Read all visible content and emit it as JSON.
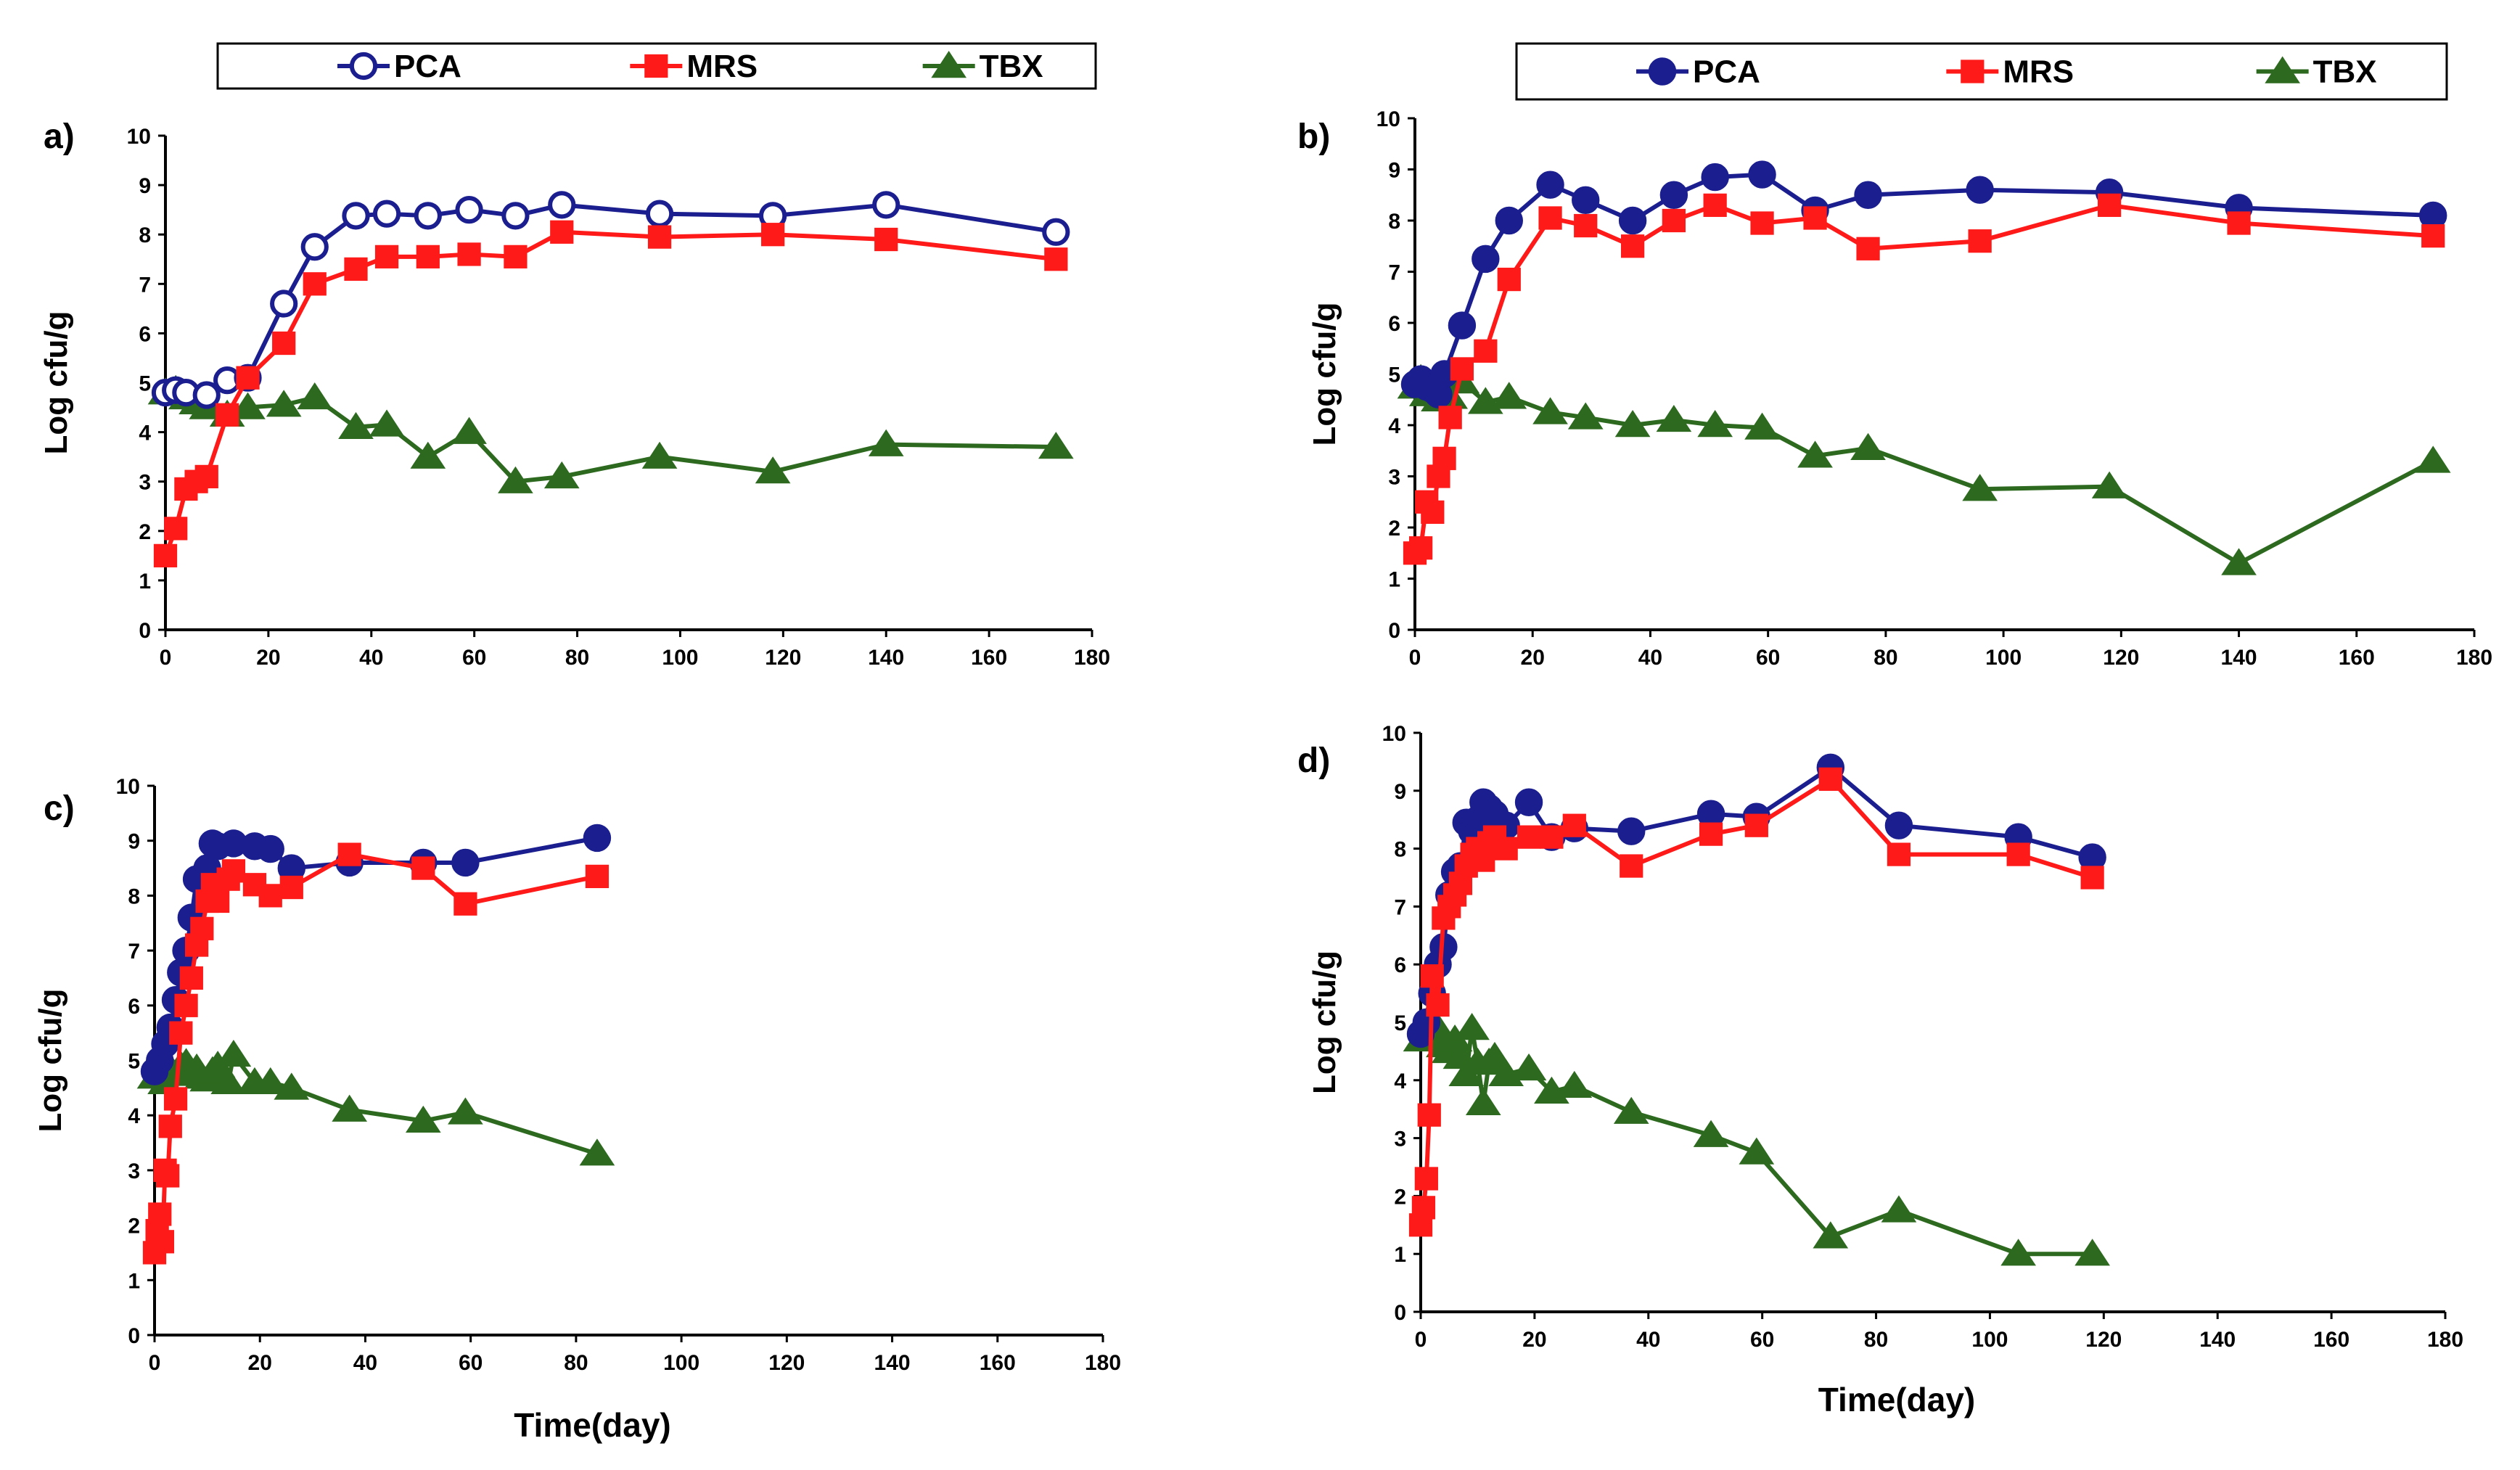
{
  "colors": {
    "PCA": "#1b1e8f",
    "MRS": "#ff1a1a",
    "TBX": "#2d6a1f"
  },
  "chart_data": [
    {
      "type": "line",
      "panel_label": "a)",
      "title": "",
      "xlabel": "",
      "ylabel": "Log cfu/g",
      "xlim": [
        0,
        180
      ],
      "ylim": [
        0,
        10
      ],
      "x_ticks": [
        "0",
        "20",
        "40",
        "60",
        "80",
        "100",
        "120",
        "140",
        "160",
        "180"
      ],
      "y_ticks": [
        "0",
        "1",
        "2",
        "3",
        "4",
        "5",
        "6",
        "7",
        "8",
        "9",
        "10"
      ],
      "legend": [
        "PCA",
        "MRS",
        "TBX"
      ],
      "series": [
        {
          "name": "PCA",
          "marker": "open-circle",
          "x": [
            0,
            2,
            4,
            8,
            12,
            16,
            23,
            29,
            37,
            43,
            51,
            59,
            68,
            77,
            96,
            118,
            140,
            173
          ],
          "y": [
            4.8,
            4.85,
            4.8,
            4.75,
            5.05,
            5.1,
            6.6,
            7.75,
            8.38,
            8.42,
            8.38,
            8.5,
            8.38,
            8.6,
            8.42,
            8.38,
            8.6,
            8.05
          ]
        },
        {
          "name": "MRS",
          "marker": "square",
          "x": [
            0,
            2,
            4,
            6,
            8,
            12,
            16,
            23,
            29,
            37,
            43,
            51,
            59,
            68,
            77,
            96,
            118,
            140,
            173
          ],
          "y": [
            1.5,
            2.05,
            2.85,
            3.0,
            3.1,
            4.35,
            5.1,
            5.8,
            7.0,
            7.3,
            7.55,
            7.55,
            7.6,
            7.55,
            8.05,
            7.95,
            8.0,
            7.9,
            7.5
          ]
        },
        {
          "name": "TBX",
          "marker": "triangle",
          "x": [
            0,
            2,
            4,
            6,
            8,
            12,
            16,
            23,
            29,
            37,
            43,
            51,
            59,
            68,
            77,
            96,
            118,
            140,
            173
          ],
          "y": [
            4.8,
            4.85,
            4.7,
            4.6,
            4.5,
            4.35,
            4.5,
            4.55,
            4.7,
            4.1,
            4.15,
            3.5,
            4.0,
            3.0,
            3.1,
            3.5,
            3.2,
            3.75,
            3.7
          ]
        }
      ]
    },
    {
      "type": "line",
      "panel_label": "b)",
      "title": "",
      "xlabel": "",
      "ylabel": "Log cfu/g",
      "xlim": [
        0,
        180
      ],
      "ylim": [
        0,
        10
      ],
      "x_ticks": [
        "0",
        "20",
        "40",
        "60",
        "80",
        "100",
        "120",
        "140",
        "160",
        "180"
      ],
      "y_ticks": [
        "0",
        "1",
        "2",
        "3",
        "4",
        "5",
        "6",
        "7",
        "8",
        "9",
        "10"
      ],
      "legend": [
        "PCA",
        "MRS",
        "TBX"
      ],
      "series": [
        {
          "name": "PCA",
          "marker": "filled-circle",
          "x": [
            0,
            1,
            2,
            3,
            4,
            5,
            8,
            12,
            16,
            23,
            29,
            37,
            44,
            51,
            59,
            68,
            77,
            96,
            118,
            140,
            173
          ],
          "y": [
            4.8,
            4.9,
            4.75,
            4.7,
            4.6,
            5.0,
            5.95,
            7.25,
            8.0,
            8.7,
            8.4,
            8.0,
            8.5,
            8.85,
            8.9,
            8.2,
            8.5,
            8.6,
            8.55,
            8.25,
            8.1
          ]
        },
        {
          "name": "MRS",
          "marker": "square",
          "x": [
            0,
            1,
            2,
            3,
            4,
            5,
            6,
            8,
            12,
            16,
            23,
            29,
            37,
            44,
            51,
            59,
            68,
            77,
            96,
            118,
            140,
            173
          ],
          "y": [
            1.5,
            1.6,
            2.5,
            2.3,
            3.0,
            3.35,
            4.15,
            5.1,
            5.45,
            6.85,
            8.05,
            7.9,
            7.5,
            8.0,
            8.3,
            7.95,
            8.05,
            7.45,
            7.6,
            8.3,
            7.95,
            7.7
          ]
        },
        {
          "name": "TBX",
          "marker": "triangle",
          "x": [
            0,
            1,
            2,
            3,
            4,
            6,
            8,
            12,
            16,
            23,
            29,
            37,
            44,
            51,
            59,
            68,
            77,
            96,
            118,
            140,
            173
          ],
          "y": [
            4.75,
            4.9,
            4.6,
            4.7,
            4.5,
            4.55,
            4.85,
            4.45,
            4.55,
            4.25,
            4.15,
            4.0,
            4.1,
            4.0,
            3.95,
            3.4,
            3.55,
            2.75,
            2.8,
            1.3,
            3.3
          ]
        }
      ]
    },
    {
      "type": "line",
      "panel_label": "c)",
      "title": "",
      "xlabel": "Time(day)",
      "ylabel": "Log cfu/g",
      "xlim": [
        0,
        180
      ],
      "ylim": [
        0,
        10
      ],
      "x_ticks": [
        "0",
        "20",
        "40",
        "60",
        "80",
        "100",
        "120",
        "140",
        "160",
        "180"
      ],
      "y_ticks": [
        "0",
        "1",
        "2",
        "3",
        "4",
        "5",
        "6",
        "7",
        "8",
        "9",
        "10"
      ],
      "legend": [],
      "series": [
        {
          "name": "PCA",
          "marker": "filled-circle",
          "x": [
            0,
            1,
            2,
            3,
            4,
            5,
            6,
            7,
            8,
            10,
            11,
            12,
            15,
            19,
            22,
            26,
            37,
            51,
            59,
            84
          ],
          "y": [
            4.8,
            5.0,
            5.3,
            5.6,
            6.1,
            6.6,
            7.0,
            7.6,
            8.3,
            8.5,
            8.95,
            8.9,
            8.95,
            8.9,
            8.85,
            8.5,
            8.6,
            8.6,
            8.6,
            9.05
          ]
        },
        {
          "name": "MRS",
          "marker": "square",
          "x": [
            0,
            0.5,
            1,
            1.5,
            2,
            2.5,
            3,
            4,
            5,
            6,
            7,
            8,
            9,
            10,
            11,
            12,
            14,
            15,
            19,
            22,
            26,
            37,
            51,
            59,
            84
          ],
          "y": [
            1.5,
            1.9,
            2.2,
            1.7,
            3.0,
            2.9,
            3.8,
            4.3,
            5.5,
            6.0,
            6.5,
            7.1,
            7.4,
            7.9,
            8.2,
            7.9,
            8.3,
            8.45,
            8.2,
            8.0,
            8.15,
            8.75,
            8.5,
            7.85,
            8.35
          ]
        },
        {
          "name": "TBX",
          "marker": "triangle",
          "x": [
            0,
            1,
            2,
            3,
            4,
            5,
            6,
            7,
            8,
            9,
            10,
            11,
            12,
            14,
            15,
            19,
            22,
            26,
            37,
            51,
            59,
            84
          ],
          "y": [
            4.7,
            4.9,
            4.6,
            4.85,
            4.75,
            4.9,
            4.95,
            4.8,
            4.85,
            4.7,
            4.65,
            4.8,
            4.9,
            4.6,
            5.1,
            4.6,
            4.6,
            4.5,
            4.1,
            3.9,
            4.05,
            3.3
          ]
        }
      ]
    },
    {
      "type": "line",
      "panel_label": "d)",
      "title": "",
      "xlabel": "Time(day)",
      "ylabel": "Log cfu/g",
      "xlim": [
        0,
        180
      ],
      "ylim": [
        0,
        10
      ],
      "x_ticks": [
        "0",
        "20",
        "40",
        "60",
        "80",
        "100",
        "120",
        "140",
        "160",
        "180"
      ],
      "y_ticks": [
        "0",
        "1",
        "2",
        "3",
        "4",
        "5",
        "6",
        "7",
        "8",
        "9",
        "10"
      ],
      "legend": [],
      "series": [
        {
          "name": "PCA",
          "marker": "filled-circle",
          "x": [
            0,
            1,
            2,
            3,
            4,
            5,
            6,
            7,
            8,
            9,
            10,
            11,
            12,
            13,
            15,
            19,
            23,
            27,
            37,
            51,
            59,
            72,
            84,
            105,
            118
          ],
          "y": [
            4.8,
            5.0,
            5.5,
            6.0,
            6.3,
            7.2,
            7.6,
            7.7,
            8.45,
            8.3,
            8.5,
            8.8,
            8.7,
            8.6,
            8.4,
            8.8,
            8.2,
            8.35,
            8.3,
            8.6,
            8.55,
            9.4,
            8.4,
            8.2,
            7.85
          ]
        },
        {
          "name": "MRS",
          "marker": "square",
          "x": [
            0,
            0.5,
            1,
            1.5,
            2,
            3,
            4,
            5,
            6,
            7,
            8,
            9,
            10,
            11,
            12,
            13,
            15,
            19,
            23,
            27,
            37,
            51,
            59,
            72,
            84,
            105,
            118
          ],
          "y": [
            1.5,
            1.8,
            2.3,
            3.4,
            5.8,
            5.3,
            6.8,
            7.0,
            7.2,
            7.4,
            7.7,
            7.9,
            8.0,
            7.8,
            8.1,
            8.2,
            8.0,
            8.2,
            8.2,
            8.4,
            7.7,
            8.25,
            8.4,
            9.2,
            7.9,
            7.9,
            7.5
          ]
        },
        {
          "name": "TBX",
          "marker": "triangle",
          "x": [
            0,
            1,
            2,
            3,
            4,
            5,
            6,
            7,
            8,
            9,
            10,
            11,
            12,
            13,
            15,
            19,
            23,
            27,
            37,
            51,
            59,
            72,
            84,
            105,
            118
          ],
          "y": [
            4.7,
            5.0,
            4.8,
            4.9,
            4.6,
            4.5,
            4.7,
            4.4,
            4.1,
            4.9,
            4.3,
            3.6,
            4.3,
            4.4,
            4.1,
            4.2,
            3.8,
            3.9,
            3.45,
            3.05,
            2.75,
            1.3,
            1.75,
            1.0,
            1.0
          ]
        }
      ]
    }
  ]
}
